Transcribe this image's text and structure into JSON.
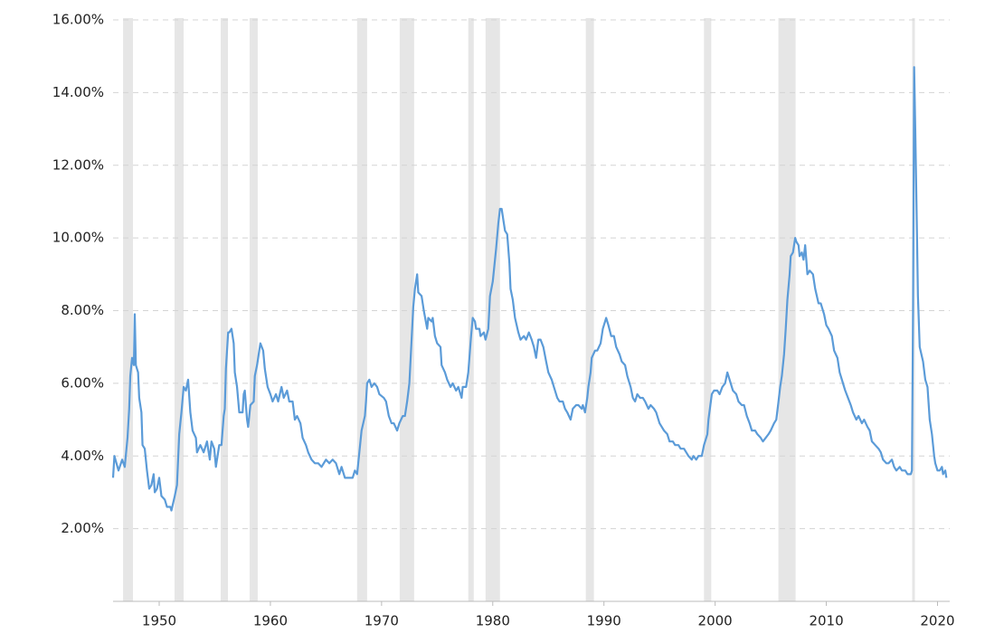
{
  "chart_data": {
    "type": "line",
    "xlim": [
      1945.85,
      2021.1
    ],
    "xticks": [
      1950,
      1960,
      1970,
      1980,
      1990,
      2000,
      2010,
      2020
    ],
    "ylim": [
      0,
      16
    ],
    "yticks": [
      {
        "value": 2,
        "label": "2.00%"
      },
      {
        "value": 4,
        "label": "4.00%"
      },
      {
        "value": 6,
        "label": "6.00%"
      },
      {
        "value": 8,
        "label": "8.00%"
      },
      {
        "value": 10,
        "label": "10.00%"
      },
      {
        "value": 12,
        "label": "12.00%"
      },
      {
        "value": 14,
        "label": "14.00%"
      },
      {
        "value": 16,
        "label": "16.00%"
      }
    ],
    "grid": true,
    "shade_color": "#e6e6e6",
    "shaded_ranges": [
      [
        1946.75,
        1947.64
      ],
      [
        1951.38,
        1952.2
      ],
      [
        1955.53,
        1956.18
      ],
      [
        1958.13,
        1958.86
      ],
      [
        1967.8,
        1968.7
      ],
      [
        1971.63,
        1972.93
      ],
      [
        1977.8,
        1978.29
      ],
      [
        1979.35,
        1980.65
      ],
      [
        1988.37,
        1989.1
      ],
      [
        1999.0,
        1999.65
      ],
      [
        2005.69,
        2007.24
      ],
      [
        2017.72,
        2017.97
      ]
    ],
    "series": [
      {
        "color": "#5b9bd8",
        "x": [
          1945.85,
          1945.97,
          1946.34,
          1946.67,
          1946.9,
          1947.15,
          1947.3,
          1947.4,
          1947.56,
          1947.72,
          1947.8,
          1947.9,
          1948.1,
          1948.2,
          1948.4,
          1948.5,
          1948.7,
          1948.9,
          1949.1,
          1949.3,
          1949.5,
          1949.6,
          1949.8,
          1950.0,
          1950.2,
          1950.5,
          1950.7,
          1951.0,
          1951.1,
          1951.4,
          1951.6,
          1951.8,
          1952.0,
          1952.2,
          1952.4,
          1952.6,
          1952.8,
          1953.0,
          1953.3,
          1953.4,
          1953.7,
          1954.0,
          1954.3,
          1954.55,
          1954.7,
          1954.95,
          1955.1,
          1955.4,
          1955.6,
          1955.8,
          1955.9,
          1956.0,
          1956.2,
          1956.3,
          1956.5,
          1956.7,
          1956.8,
          1957.0,
          1957.2,
          1957.5,
          1957.6,
          1957.7,
          1957.9,
          1958.0,
          1958.2,
          1958.5,
          1958.6,
          1958.8,
          1959.0,
          1959.1,
          1959.35,
          1959.5,
          1959.75,
          1960.0,
          1960.2,
          1960.5,
          1960.7,
          1961.0,
          1961.2,
          1961.5,
          1961.7,
          1962.0,
          1962.2,
          1962.4,
          1962.7,
          1962.9,
          1963.2,
          1963.4,
          1963.7,
          1964.0,
          1964.3,
          1964.6,
          1965.0,
          1965.3,
          1965.6,
          1965.9,
          1966.2,
          1966.4,
          1966.7,
          1967.1,
          1967.4,
          1967.6,
          1967.8,
          1968.0,
          1968.2,
          1968.5,
          1968.6,
          1968.7,
          1968.9,
          1969.1,
          1969.35,
          1969.6,
          1969.8,
          1970.2,
          1970.4,
          1970.65,
          1970.9,
          1971.1,
          1971.4,
          1971.6,
          1971.9,
          1972.1,
          1972.3,
          1972.5,
          1972.7,
          1972.85,
          1973.0,
          1973.2,
          1973.3,
          1973.6,
          1973.8,
          1974.1,
          1974.2,
          1974.5,
          1974.6,
          1974.8,
          1975.0,
          1975.3,
          1975.4,
          1975.7,
          1975.9,
          1976.2,
          1976.4,
          1976.7,
          1976.9,
          1977.2,
          1977.3,
          1977.6,
          1977.8,
          1978.05,
          1978.2,
          1978.4,
          1978.5,
          1978.8,
          1978.9,
          1979.2,
          1979.35,
          1979.6,
          1979.75,
          1980.0,
          1980.2,
          1980.3,
          1980.5,
          1980.65,
          1980.8,
          1981.0,
          1981.1,
          1981.3,
          1981.5,
          1981.6,
          1981.8,
          1982.0,
          1982.3,
          1982.5,
          1982.8,
          1983.0,
          1983.25,
          1983.5,
          1983.7,
          1983.9,
          1984.1,
          1984.3,
          1984.55,
          1984.8,
          1985.0,
          1985.3,
          1985.5,
          1985.8,
          1986.0,
          1986.3,
          1986.5,
          1986.7,
          1987.0,
          1987.2,
          1987.5,
          1987.7,
          1988.0,
          1988.1,
          1988.3,
          1988.5,
          1988.6,
          1988.8,
          1988.9,
          1989.2,
          1989.4,
          1989.7,
          1989.9,
          1990.2,
          1990.4,
          1990.65,
          1990.9,
          1991.1,
          1991.4,
          1991.6,
          1991.9,
          1992.1,
          1992.4,
          1992.6,
          1992.8,
          1993.0,
          1993.25,
          1993.5,
          1993.7,
          1994.0,
          1994.2,
          1994.5,
          1994.7,
          1995.0,
          1995.2,
          1995.4,
          1995.7,
          1995.9,
          1996.2,
          1996.4,
          1996.7,
          1996.9,
          1997.2,
          1997.4,
          1997.6,
          1997.9,
          1998.05,
          1998.3,
          1998.5,
          1998.8,
          1999.0,
          1999.3,
          1999.4,
          1999.7,
          1999.9,
          2000.2,
          2000.4,
          2000.65,
          2000.9,
          2001.1,
          2001.4,
          2001.6,
          2001.9,
          2002.1,
          2002.4,
          2002.6,
          2002.85,
          2003.1,
          2003.3,
          2003.6,
          2003.8,
          2004.1,
          2004.3,
          2004.55,
          2004.8,
          2005.0,
          2005.3,
          2005.5,
          2005.7,
          2005.85,
          2006.0,
          2006.2,
          2006.35,
          2006.5,
          2006.7,
          2006.8,
          2007.0,
          2007.2,
          2007.3,
          2007.5,
          2007.6,
          2007.8,
          2007.95,
          2008.1,
          2008.3,
          2008.5,
          2008.8,
          2009.0,
          2009.3,
          2009.5,
          2009.8,
          2010.0,
          2010.2,
          2010.5,
          2010.7,
          2011.0,
          2011.2,
          2011.5,
          2011.7,
          2011.95,
          2012.2,
          2012.4,
          2012.7,
          2012.9,
          2013.2,
          2013.4,
          2013.7,
          2013.9,
          2014.1,
          2014.4,
          2014.7,
          2014.9,
          2015.1,
          2015.4,
          2015.6,
          2015.9,
          2016.1,
          2016.3,
          2016.6,
          2016.8,
          2017.1,
          2017.3,
          2017.6,
          2017.7,
          2017.8,
          2017.9,
          2018.0,
          2018.15,
          2018.24,
          2018.4,
          2018.7,
          2018.9,
          2019.1,
          2019.3,
          2019.5,
          2019.7,
          2019.8,
          2020.0,
          2020.2,
          2020.4,
          2020.5,
          2020.7,
          2020.8
        ],
        "values": [
          3.4,
          4.0,
          3.6,
          3.9,
          3.7,
          4.5,
          5.3,
          6.2,
          6.7,
          6.5,
          7.9,
          6.5,
          6.3,
          5.6,
          5.2,
          4.3,
          4.2,
          3.6,
          3.1,
          3.2,
          3.5,
          3.0,
          3.1,
          3.4,
          2.9,
          2.8,
          2.6,
          2.6,
          2.5,
          2.9,
          3.2,
          4.6,
          5.2,
          5.9,
          5.8,
          6.1,
          5.2,
          4.7,
          4.5,
          4.1,
          4.3,
          4.1,
          4.4,
          3.9,
          4.4,
          4.2,
          3.7,
          4.3,
          4.3,
          5.1,
          5.3,
          6.4,
          7.4,
          7.4,
          7.5,
          7.1,
          6.3,
          5.9,
          5.2,
          5.2,
          5.7,
          5.8,
          5.0,
          4.8,
          5.4,
          5.5,
          6.2,
          6.5,
          6.9,
          7.1,
          6.9,
          6.4,
          5.9,
          5.7,
          5.5,
          5.7,
          5.5,
          5.9,
          5.6,
          5.8,
          5.5,
          5.5,
          5.0,
          5.1,
          4.9,
          4.5,
          4.3,
          4.1,
          3.9,
          3.8,
          3.8,
          3.7,
          3.9,
          3.8,
          3.9,
          3.8,
          3.5,
          3.7,
          3.4,
          3.4,
          3.4,
          3.6,
          3.5,
          4.1,
          4.7,
          5.1,
          5.5,
          6.0,
          6.1,
          5.9,
          6.0,
          5.9,
          5.7,
          5.6,
          5.5,
          5.1,
          4.9,
          4.9,
          4.7,
          4.9,
          5.1,
          5.1,
          5.5,
          6.0,
          7.2,
          8.1,
          8.6,
          9.0,
          8.5,
          8.4,
          8.0,
          7.5,
          7.8,
          7.7,
          7.8,
          7.3,
          7.1,
          7.0,
          6.5,
          6.3,
          6.1,
          5.9,
          6.0,
          5.8,
          5.9,
          5.6,
          5.9,
          5.9,
          6.3,
          7.3,
          7.8,
          7.7,
          7.5,
          7.5,
          7.3,
          7.4,
          7.2,
          7.5,
          8.4,
          8.8,
          9.4,
          9.7,
          10.4,
          10.8,
          10.8,
          10.4,
          10.2,
          10.1,
          9.3,
          8.6,
          8.3,
          7.8,
          7.4,
          7.2,
          7.3,
          7.2,
          7.4,
          7.2,
          7.0,
          6.7,
          7.2,
          7.2,
          7.0,
          6.6,
          6.3,
          6.1,
          5.9,
          5.6,
          5.5,
          5.5,
          5.3,
          5.2,
          5.0,
          5.3,
          5.4,
          5.4,
          5.3,
          5.4,
          5.2,
          5.6,
          5.9,
          6.3,
          6.7,
          6.9,
          6.9,
          7.1,
          7.5,
          7.8,
          7.6,
          7.3,
          7.3,
          7.0,
          6.8,
          6.6,
          6.5,
          6.2,
          5.9,
          5.6,
          5.5,
          5.7,
          5.6,
          5.6,
          5.5,
          5.3,
          5.4,
          5.3,
          5.2,
          4.9,
          4.8,
          4.7,
          4.6,
          4.4,
          4.4,
          4.3,
          4.3,
          4.2,
          4.2,
          4.1,
          4.0,
          3.9,
          4.0,
          3.9,
          4.0,
          4.0,
          4.3,
          4.6,
          5.0,
          5.7,
          5.8,
          5.8,
          5.7,
          5.9,
          6.0,
          6.3,
          6.0,
          5.8,
          5.7,
          5.5,
          5.4,
          5.4,
          5.1,
          4.9,
          4.7,
          4.7,
          4.6,
          4.5,
          4.4,
          4.5,
          4.6,
          4.7,
          4.9,
          5.0,
          5.5,
          5.9,
          6.2,
          6.8,
          7.5,
          8.3,
          9.0,
          9.5,
          9.6,
          10.0,
          9.9,
          9.8,
          9.5,
          9.6,
          9.4,
          9.8,
          9.0,
          9.1,
          9.0,
          8.6,
          8.2,
          8.2,
          7.9,
          7.6,
          7.5,
          7.3,
          6.9,
          6.7,
          6.3,
          6.0,
          5.8,
          5.6,
          5.4,
          5.2,
          5.0,
          5.1,
          4.9,
          5.0,
          4.8,
          4.7,
          4.4,
          4.3,
          4.2,
          4.1,
          3.9,
          3.8,
          3.8,
          3.9,
          3.7,
          3.6,
          3.7,
          3.6,
          3.6,
          3.5,
          3.5,
          3.6,
          8.0,
          14.7,
          13.0,
          10.2,
          8.4,
          7.0,
          6.6,
          6.1,
          5.9,
          5.0,
          4.6,
          4.0,
          3.8,
          3.6,
          3.6,
          3.7,
          3.5,
          3.6,
          3.4
        ]
      }
    ]
  }
}
